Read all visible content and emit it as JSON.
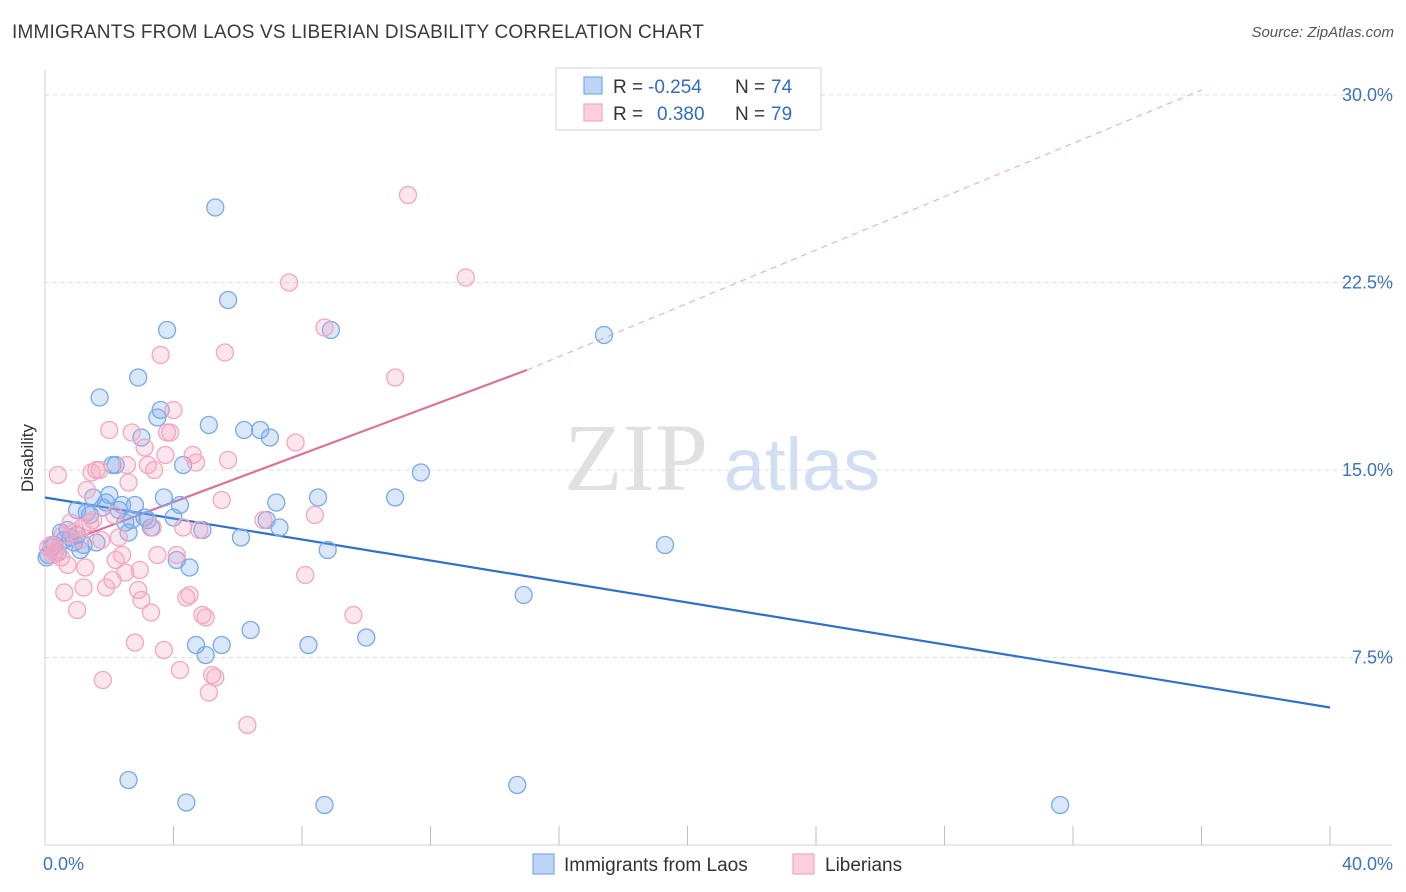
{
  "title": "IMMIGRANTS FROM LAOS VS LIBERIAN DISABILITY CORRELATION CHART",
  "source": "Source: ZipAtlas.com",
  "watermark": {
    "zip": "ZIP",
    "atlas": "atlas"
  },
  "legend": {
    "r_label": "R =",
    "n_label": "N =",
    "laos": {
      "r": "-0.254",
      "n": "74"
    },
    "liberians": {
      "r": "0.380",
      "n": "79"
    }
  },
  "chart_data": {
    "type": "scatter",
    "title": "IMMIGRANTS FROM LAOS VS LIBERIAN DISABILITY CORRELATION CHART",
    "xlabel": "",
    "ylabel": "Disability",
    "xlim": [
      0,
      40
    ],
    "ylim": [
      0,
      31
    ],
    "x_tick_labels": [
      "0.0%",
      "40.0%"
    ],
    "y_ticks": [
      7.5,
      15.0,
      22.5,
      30.0
    ],
    "y_tick_labels": [
      "7.5%",
      "15.0%",
      "22.5%",
      "30.0%"
    ],
    "colors": {
      "laos": "#7aaae8",
      "laos_line": "#2f6fd1",
      "liberians": "#f4a6c0",
      "liberians_line": "#e0709a"
    },
    "series": [
      {
        "name": "Immigrants from Laos",
        "trend": {
          "x0": 0,
          "y0": 13.9,
          "x1": 40,
          "y1": 5.5
        },
        "points": [
          [
            0.1,
            11.6
          ],
          [
            0.2,
            11.9
          ],
          [
            0.3,
            12.0
          ],
          [
            0.4,
            11.7
          ],
          [
            0.5,
            12.5
          ],
          [
            0.6,
            12.2
          ],
          [
            0.7,
            12.6
          ],
          [
            0.8,
            12.3
          ],
          [
            0.9,
            12.1
          ],
          [
            1.0,
            12.4
          ],
          [
            1.1,
            11.8
          ],
          [
            1.2,
            12.0
          ],
          [
            1.3,
            13.3
          ],
          [
            1.4,
            13.2
          ],
          [
            1.5,
            13.9
          ],
          [
            1.6,
            12.1
          ],
          [
            1.7,
            17.9
          ],
          [
            1.8,
            13.5
          ],
          [
            1.9,
            13.7
          ],
          [
            2.0,
            14.0
          ],
          [
            2.1,
            15.2
          ],
          [
            2.2,
            15.2
          ],
          [
            2.3,
            13.4
          ],
          [
            2.4,
            13.6
          ],
          [
            2.5,
            12.9
          ],
          [
            2.6,
            12.5
          ],
          [
            2.7,
            13.0
          ],
          [
            2.8,
            13.6
          ],
          [
            2.9,
            18.7
          ],
          [
            3.0,
            16.3
          ],
          [
            3.1,
            13.1
          ],
          [
            3.2,
            13.0
          ],
          [
            3.3,
            12.7
          ],
          [
            3.5,
            17.1
          ],
          [
            3.6,
            17.4
          ],
          [
            3.7,
            13.9
          ],
          [
            3.8,
            20.6
          ],
          [
            4.0,
            13.1
          ],
          [
            4.1,
            11.4
          ],
          [
            4.2,
            13.6
          ],
          [
            4.3,
            15.2
          ],
          [
            4.5,
            11.1
          ],
          [
            4.7,
            8.0
          ],
          [
            4.9,
            12.6
          ],
          [
            5.0,
            7.6
          ],
          [
            5.1,
            16.8
          ],
          [
            5.3,
            25.5
          ],
          [
            5.5,
            8.0
          ],
          [
            5.7,
            21.8
          ],
          [
            6.1,
            12.3
          ],
          [
            6.2,
            16.6
          ],
          [
            6.4,
            8.6
          ],
          [
            6.7,
            16.6
          ],
          [
            6.9,
            13.0
          ],
          [
            7.0,
            16.3
          ],
          [
            7.2,
            13.7
          ],
          [
            7.3,
            12.7
          ],
          [
            8.2,
            8.0
          ],
          [
            8.5,
            13.9
          ],
          [
            8.8,
            11.8
          ],
          [
            8.9,
            20.6
          ],
          [
            10.0,
            8.3
          ],
          [
            10.9,
            13.9
          ],
          [
            11.7,
            14.9
          ],
          [
            14.9,
            10.0
          ],
          [
            17.4,
            20.4
          ],
          [
            19.3,
            12.0
          ],
          [
            2.6,
            2.6
          ],
          [
            4.4,
            1.7
          ],
          [
            8.7,
            1.6
          ],
          [
            14.7,
            2.4
          ],
          [
            31.6,
            1.6
          ],
          [
            0.05,
            11.5
          ],
          [
            1.0,
            13.4
          ]
        ]
      },
      {
        "name": "Liberians",
        "trend": {
          "x0": 0,
          "y0": 11.8,
          "x1": 15,
          "y1": 19.0,
          "dash_to_x": 36,
          "dash_to_y": 30.2
        },
        "points": [
          [
            0.1,
            11.9
          ],
          [
            0.2,
            12.0
          ],
          [
            0.3,
            11.7
          ],
          [
            0.4,
            14.8
          ],
          [
            0.5,
            11.5
          ],
          [
            0.6,
            10.1
          ],
          [
            0.7,
            11.2
          ],
          [
            0.8,
            12.9
          ],
          [
            0.9,
            12.5
          ],
          [
            1.0,
            9.4
          ],
          [
            1.1,
            12.2
          ],
          [
            1.2,
            10.3
          ],
          [
            1.3,
            14.2
          ],
          [
            1.4,
            12.9
          ],
          [
            1.5,
            13.0
          ],
          [
            1.6,
            15.0
          ],
          [
            1.7,
            15.0
          ],
          [
            1.8,
            6.6
          ],
          [
            1.9,
            10.3
          ],
          [
            2.0,
            16.6
          ],
          [
            2.1,
            10.6
          ],
          [
            2.2,
            11.4
          ],
          [
            2.3,
            12.3
          ],
          [
            2.4,
            11.6
          ],
          [
            2.5,
            10.9
          ],
          [
            2.6,
            14.5
          ],
          [
            2.7,
            16.5
          ],
          [
            2.8,
            8.1
          ],
          [
            2.9,
            10.2
          ],
          [
            3.0,
            9.8
          ],
          [
            3.1,
            15.9
          ],
          [
            3.2,
            15.2
          ],
          [
            3.3,
            9.3
          ],
          [
            3.4,
            15.0
          ],
          [
            3.5,
            11.6
          ],
          [
            3.6,
            19.6
          ],
          [
            3.7,
            7.8
          ],
          [
            3.8,
            16.5
          ],
          [
            3.9,
            16.5
          ],
          [
            4.0,
            17.4
          ],
          [
            4.1,
            11.6
          ],
          [
            4.2,
            7.0
          ],
          [
            4.3,
            12.7
          ],
          [
            4.4,
            9.9
          ],
          [
            4.5,
            10.0
          ],
          [
            4.6,
            15.6
          ],
          [
            4.7,
            15.3
          ],
          [
            4.8,
            12.6
          ],
          [
            4.9,
            9.2
          ],
          [
            5.0,
            9.1
          ],
          [
            5.1,
            6.1
          ],
          [
            5.2,
            6.8
          ],
          [
            5.3,
            6.7
          ],
          [
            5.5,
            13.8
          ],
          [
            5.6,
            19.7
          ],
          [
            5.7,
            15.4
          ],
          [
            6.3,
            4.8
          ],
          [
            6.8,
            13.0
          ],
          [
            7.6,
            22.5
          ],
          [
            7.8,
            16.1
          ],
          [
            8.1,
            10.8
          ],
          [
            8.4,
            13.2
          ],
          [
            8.7,
            20.7
          ],
          [
            9.6,
            9.2
          ],
          [
            10.9,
            18.7
          ],
          [
            11.3,
            26.0
          ],
          [
            13.1,
            22.7
          ],
          [
            0.35,
            11.8
          ],
          [
            0.55,
            12.4
          ],
          [
            1.15,
            12.7
          ],
          [
            1.45,
            14.9
          ],
          [
            1.75,
            12.2
          ],
          [
            2.15,
            13.2
          ],
          [
            2.55,
            15.2
          ],
          [
            2.95,
            11.0
          ],
          [
            3.35,
            12.7
          ],
          [
            3.75,
            15.6
          ],
          [
            0.25,
            11.6
          ],
          [
            1.25,
            11.1
          ]
        ]
      }
    ]
  },
  "bottom_legend": {
    "laos_label": "Immigrants from Laos",
    "liberians_label": "Liberians"
  }
}
